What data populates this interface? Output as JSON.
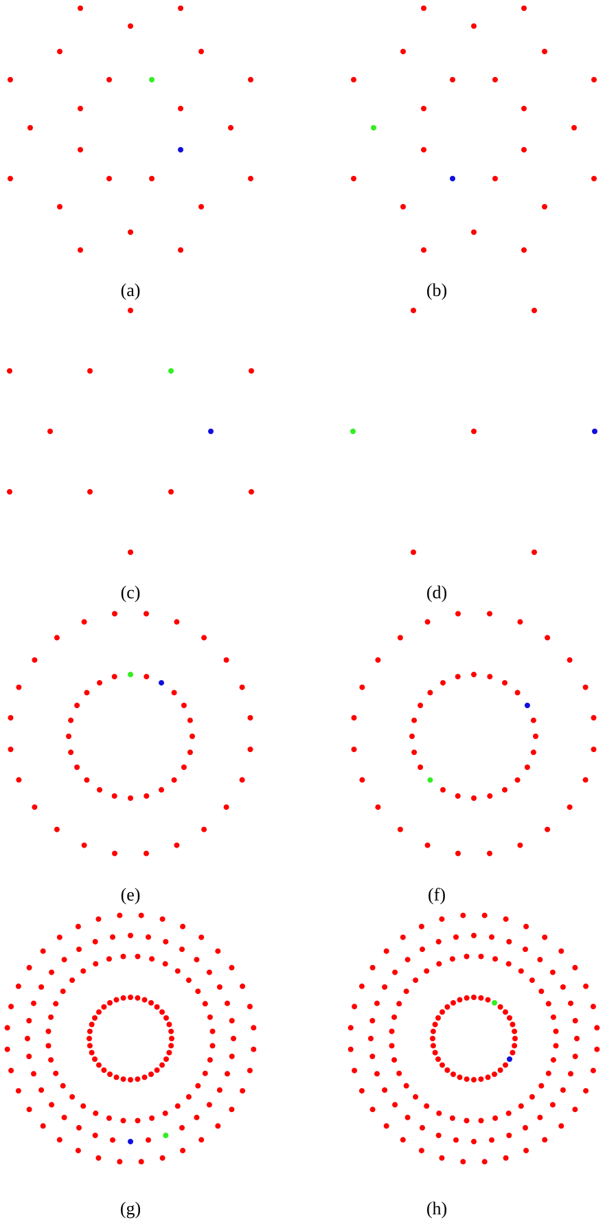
{
  "colors": {
    "point": "#ff0000",
    "first_marker": "#33ee22",
    "second_marker": "#1010dd",
    "background": "#ffffff"
  },
  "panels": [
    {
      "id": "a",
      "caption": "(a)",
      "pattern": "hex-lattice",
      "first_marker_index": 7,
      "second_marker_index": 14
    },
    {
      "id": "b",
      "caption": "(b)",
      "pattern": "hex-lattice",
      "first_marker_index": 11,
      "second_marker_index": 16
    },
    {
      "id": "c",
      "caption": "(c)",
      "pattern": "hexagon-ring",
      "first_marker_index": 3,
      "second_marker_index": 6
    },
    {
      "id": "d",
      "caption": "(d)",
      "pattern": "sparse-hexagon",
      "first_marker_index": 2,
      "second_marker_index": 4
    },
    {
      "id": "e",
      "caption": "(e)",
      "pattern": "two-rings",
      "first_marker_index": 0,
      "second_marker_index": 2
    },
    {
      "id": "f",
      "caption": "(f)",
      "pattern": "two-rings",
      "first_marker_index": 15,
      "second_marker_index": 4
    },
    {
      "id": "g",
      "caption": "(g)",
      "pattern": "three-rings",
      "first_marker_index": 88,
      "second_marker_index": 90
    },
    {
      "id": "h",
      "caption": "(h)",
      "pattern": "three-rings",
      "first_marker_index": 3,
      "second_marker_index": 12
    }
  ]
}
